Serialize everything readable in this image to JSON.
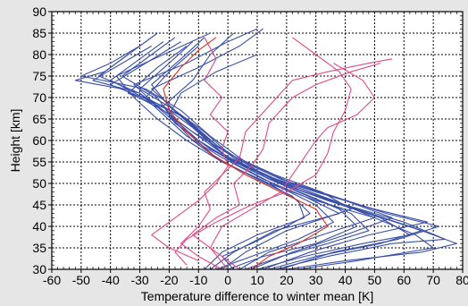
{
  "chart_data": {
    "type": "line",
    "xlabel": "Temperature difference to winter mean [K]",
    "ylabel": "Height [km]",
    "xlim": [
      -60,
      80
    ],
    "ylim": [
      30,
      90
    ],
    "xticks": [
      -60,
      -50,
      -40,
      -30,
      -20,
      -10,
      0,
      10,
      20,
      30,
      40,
      50,
      60,
      70,
      80
    ],
    "yticks": [
      30,
      35,
      40,
      45,
      50,
      55,
      60,
      65,
      70,
      75,
      80,
      85,
      90
    ],
    "x_tick_labels": [
      "-60",
      "-50",
      "-40",
      "-30",
      "-20",
      "-10",
      "0",
      "10",
      "20",
      "30",
      "40",
      "50",
      "60",
      "70",
      "80"
    ],
    "y_tick_labels": [
      "30",
      "35",
      "40",
      "45",
      "50",
      "55",
      "60",
      "65",
      "70",
      "75",
      "80",
      "85",
      "90"
    ],
    "grid": true,
    "colors": {
      "profiles": "#3a4fa8",
      "highlight": "#e04a8a",
      "mean": "#e0301e",
      "background": "#e6e6e6",
      "plot_area": "#ffffff"
    },
    "series": [
      {
        "group": "profile",
        "values": [
          [
            2,
            30
          ],
          [
            -2,
            33
          ],
          [
            8,
            36
          ],
          [
            20,
            40
          ],
          [
            28,
            43
          ],
          [
            22,
            47
          ],
          [
            10,
            51
          ],
          [
            -4,
            56
          ],
          [
            -14,
            62
          ],
          [
            -22,
            68
          ],
          [
            -12,
            74
          ],
          [
            -6,
            80
          ],
          [
            2,
            85
          ]
        ]
      },
      {
        "group": "profile",
        "values": [
          [
            6,
            30
          ],
          [
            18,
            33
          ],
          [
            34,
            36
          ],
          [
            48,
            39
          ],
          [
            42,
            43
          ],
          [
            28,
            47
          ],
          [
            14,
            51
          ],
          [
            0,
            56
          ],
          [
            -10,
            62
          ],
          [
            -20,
            68
          ],
          [
            -26,
            73
          ],
          [
            -16,
            79
          ],
          [
            -8,
            84
          ]
        ]
      },
      {
        "group": "profile",
        "values": [
          [
            10,
            30
          ],
          [
            26,
            33
          ],
          [
            46,
            36
          ],
          [
            62,
            38
          ],
          [
            52,
            42
          ],
          [
            34,
            46
          ],
          [
            18,
            50
          ],
          [
            4,
            55
          ],
          [
            -8,
            61
          ],
          [
            -18,
            67
          ],
          [
            -30,
            72
          ],
          [
            -20,
            78
          ],
          [
            -12,
            83
          ]
        ]
      },
      {
        "group": "profile",
        "values": [
          [
            16,
            30
          ],
          [
            34,
            33
          ],
          [
            56,
            36
          ],
          [
            74,
            37
          ],
          [
            60,
            41
          ],
          [
            40,
            45
          ],
          [
            22,
            49
          ],
          [
            6,
            54
          ],
          [
            -6,
            60
          ],
          [
            -16,
            66
          ],
          [
            -34,
            71
          ],
          [
            -24,
            77
          ],
          [
            -14,
            82
          ]
        ]
      },
      {
        "group": "profile",
        "values": [
          [
            20,
            30
          ],
          [
            40,
            32
          ],
          [
            66,
            34
          ],
          [
            78,
            36
          ],
          [
            62,
            40
          ],
          [
            44,
            44
          ],
          [
            26,
            48
          ],
          [
            10,
            53
          ],
          [
            -4,
            59
          ],
          [
            -14,
            65
          ],
          [
            -28,
            70
          ],
          [
            -20,
            76
          ],
          [
            -10,
            82
          ]
        ]
      },
      {
        "group": "profile",
        "values": [
          [
            -4,
            30
          ],
          [
            8,
            33
          ],
          [
            24,
            37
          ],
          [
            36,
            41
          ],
          [
            30,
            45
          ],
          [
            18,
            49
          ],
          [
            4,
            54
          ],
          [
            -8,
            59
          ],
          [
            -18,
            64
          ],
          [
            -24,
            70
          ],
          [
            -36,
            75
          ],
          [
            -26,
            80
          ],
          [
            -18,
            84
          ]
        ]
      },
      {
        "group": "profile",
        "values": [
          [
            0,
            30
          ],
          [
            12,
            33
          ],
          [
            30,
            36
          ],
          [
            44,
            40
          ],
          [
            38,
            44
          ],
          [
            24,
            48
          ],
          [
            8,
            53
          ],
          [
            -6,
            58
          ],
          [
            -16,
            63
          ],
          [
            -26,
            69
          ],
          [
            -40,
            74
          ],
          [
            -30,
            79
          ],
          [
            -22,
            83
          ]
        ]
      },
      {
        "group": "profile",
        "values": [
          [
            4,
            30
          ],
          [
            14,
            34
          ],
          [
            32,
            38
          ],
          [
            50,
            42
          ],
          [
            36,
            46
          ],
          [
            20,
            50
          ],
          [
            2,
            55
          ],
          [
            -10,
            60
          ],
          [
            -20,
            66
          ],
          [
            -30,
            71
          ],
          [
            -44,
            75
          ],
          [
            -34,
            80
          ],
          [
            -24,
            85
          ]
        ]
      },
      {
        "group": "profile",
        "values": [
          [
            8,
            30
          ],
          [
            22,
            34
          ],
          [
            40,
            38
          ],
          [
            56,
            42
          ],
          [
            40,
            46
          ],
          [
            22,
            50
          ],
          [
            6,
            55
          ],
          [
            -6,
            61
          ],
          [
            -16,
            67
          ],
          [
            -28,
            72
          ],
          [
            -50,
            75
          ],
          [
            -40,
            78
          ],
          [
            -30,
            82
          ]
        ]
      },
      {
        "group": "profile",
        "values": [
          [
            -2,
            30
          ],
          [
            6,
            34
          ],
          [
            20,
            39
          ],
          [
            42,
            44
          ],
          [
            32,
            48
          ],
          [
            16,
            52
          ],
          [
            0,
            57
          ],
          [
            -12,
            62
          ],
          [
            -22,
            67
          ],
          [
            -36,
            72
          ],
          [
            -52,
            74
          ],
          [
            -42,
            76
          ],
          [
            -34,
            80
          ]
        ]
      },
      {
        "group": "profile",
        "values": [
          [
            12,
            30
          ],
          [
            28,
            34
          ],
          [
            48,
            38
          ],
          [
            68,
            41
          ],
          [
            50,
            44
          ],
          [
            30,
            48
          ],
          [
            12,
            52
          ],
          [
            -2,
            57
          ],
          [
            -12,
            63
          ],
          [
            -22,
            68
          ],
          [
            -40,
            73
          ],
          [
            -28,
            78
          ],
          [
            -16,
            83
          ]
        ]
      },
      {
        "group": "profile",
        "values": [
          [
            -6,
            30
          ],
          [
            2,
            34
          ],
          [
            16,
            39
          ],
          [
            38,
            43
          ],
          [
            26,
            47
          ],
          [
            12,
            51
          ],
          [
            -2,
            56
          ],
          [
            -14,
            61
          ],
          [
            -22,
            66
          ],
          [
            -30,
            71
          ],
          [
            -46,
            74
          ],
          [
            -36,
            78
          ],
          [
            -26,
            82
          ]
        ]
      },
      {
        "group": "profile",
        "values": [
          [
            18,
            30
          ],
          [
            36,
            34
          ],
          [
            58,
            37
          ],
          [
            72,
            40
          ],
          [
            54,
            43
          ],
          [
            36,
            47
          ],
          [
            18,
            51
          ],
          [
            2,
            56
          ],
          [
            -8,
            62
          ],
          [
            -18,
            67
          ],
          [
            -26,
            72
          ],
          [
            -10,
            77
          ],
          [
            4,
            82
          ],
          [
            12,
            86
          ]
        ]
      },
      {
        "group": "profile",
        "values": [
          [
            -8,
            30
          ],
          [
            -2,
            34
          ],
          [
            10,
            38
          ],
          [
            26,
            42
          ],
          [
            24,
            46
          ],
          [
            14,
            50
          ],
          [
            -2,
            55
          ],
          [
            -14,
            60
          ],
          [
            -24,
            65
          ],
          [
            -32,
            70
          ],
          [
            -38,
            75
          ],
          [
            -22,
            80
          ],
          [
            -6,
            85
          ]
        ]
      },
      {
        "group": "profile",
        "values": [
          [
            14,
            30
          ],
          [
            30,
            33
          ],
          [
            52,
            36
          ],
          [
            66,
            39
          ],
          [
            48,
            43
          ],
          [
            32,
            47
          ],
          [
            16,
            51
          ],
          [
            0,
            56
          ],
          [
            -12,
            62
          ],
          [
            -24,
            68
          ],
          [
            -32,
            73
          ],
          [
            -14,
            78
          ],
          [
            0,
            83
          ],
          [
            10,
            86
          ]
        ]
      },
      {
        "group": "profile",
        "values": [
          [
            24,
            30
          ],
          [
            44,
            32
          ],
          [
            70,
            35
          ],
          [
            64,
            38
          ],
          [
            50,
            42
          ],
          [
            30,
            46
          ],
          [
            14,
            50
          ],
          [
            -2,
            55
          ],
          [
            -12,
            60
          ],
          [
            -20,
            66
          ],
          [
            -16,
            71
          ],
          [
            -4,
            76
          ],
          [
            10,
            80
          ]
        ]
      },
      {
        "group": "highlight",
        "values": [
          [
            -2,
            30
          ],
          [
            -10,
            33
          ],
          [
            -16,
            36
          ],
          [
            -10,
            40
          ],
          [
            -6,
            44
          ],
          [
            -8,
            48
          ],
          [
            -2,
            52
          ],
          [
            4,
            56
          ],
          [
            6,
            62
          ],
          [
            14,
            68
          ],
          [
            22,
            74
          ],
          [
            34,
            76
          ],
          [
            48,
            78
          ],
          [
            56,
            79
          ]
        ]
      },
      {
        "group": "highlight",
        "values": [
          [
            4,
            30
          ],
          [
            -4,
            34
          ],
          [
            -12,
            38
          ],
          [
            -4,
            42
          ],
          [
            4,
            45
          ],
          [
            2,
            50
          ],
          [
            8,
            54
          ],
          [
            12,
            58
          ],
          [
            14,
            64
          ],
          [
            22,
            70
          ],
          [
            30,
            73
          ],
          [
            42,
            76
          ],
          [
            52,
            78
          ]
        ]
      },
      {
        "group": "highlight",
        "values": [
          [
            -14,
            31
          ],
          [
            -18,
            34
          ],
          [
            -14,
            37
          ],
          [
            -4,
            41
          ],
          [
            8,
            45
          ],
          [
            20,
            48
          ],
          [
            30,
            52
          ],
          [
            34,
            57
          ],
          [
            36,
            62
          ],
          [
            40,
            67
          ],
          [
            42,
            72
          ],
          [
            38,
            76
          ],
          [
            30,
            80
          ],
          [
            22,
            84
          ]
        ]
      },
      {
        "group": "highlight",
        "values": [
          [
            0,
            30
          ],
          [
            -6,
            35
          ],
          [
            -2,
            40
          ],
          [
            8,
            44
          ],
          [
            18,
            48
          ],
          [
            22,
            52
          ],
          [
            26,
            56
          ],
          [
            30,
            60
          ],
          [
            34,
            63
          ],
          [
            44,
            66
          ],
          [
            50,
            70
          ],
          [
            46,
            74
          ],
          [
            36,
            78
          ]
        ]
      },
      {
        "group": "highlight",
        "values": [
          [
            -10,
            32
          ],
          [
            -20,
            35
          ],
          [
            -26,
            38
          ],
          [
            -18,
            42
          ],
          [
            -10,
            46
          ],
          [
            -4,
            50
          ],
          [
            0,
            54
          ],
          [
            -2,
            58
          ],
          [
            0,
            62
          ],
          [
            -6,
            66
          ],
          [
            -2,
            70
          ],
          [
            -8,
            74
          ],
          [
            -4,
            79
          ],
          [
            -8,
            84
          ]
        ]
      },
      {
        "group": "mean",
        "values": [
          [
            8,
            30
          ],
          [
            14,
            33
          ],
          [
            24,
            36
          ],
          [
            34,
            40
          ],
          [
            30,
            44
          ],
          [
            18,
            48
          ],
          [
            6,
            52
          ],
          [
            -6,
            57
          ],
          [
            -14,
            62
          ],
          [
            -20,
            67
          ],
          [
            -22,
            72
          ],
          [
            -16,
            77
          ],
          [
            -10,
            81
          ],
          [
            -4,
            84
          ]
        ]
      }
    ]
  }
}
